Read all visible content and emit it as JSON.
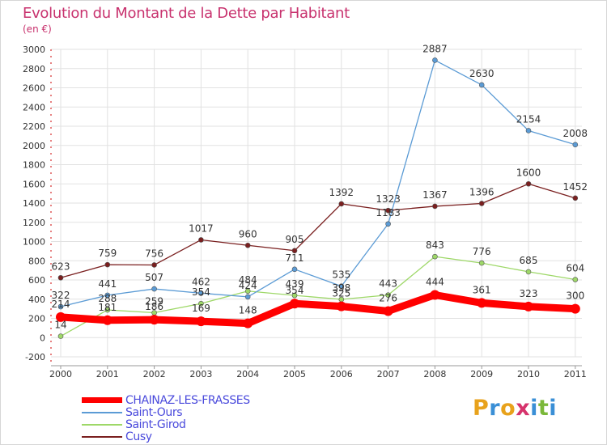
{
  "title": "Evolution du Montant de la Dette par Habitant",
  "unit": "(en €)",
  "logo": {
    "letters": [
      "P",
      "r",
      "o",
      "x",
      "i",
      "t",
      "i"
    ],
    "colors": [
      "#e8a21c",
      "#3a8fd6",
      "#e8a21c",
      "#d6336c",
      "#3a8fd6",
      "#7bb83a",
      "#3a8fd6"
    ]
  },
  "chart_data": {
    "type": "line",
    "title": "Evolution du Montant de la Dette par Habitant",
    "ylabel": "(en €)",
    "xlabel": "",
    "x": [
      "2000",
      "2001",
      "2002",
      "2003",
      "2004",
      "2005",
      "2006",
      "2007",
      "2008",
      "2009",
      "2010",
      "2011"
    ],
    "ylim": [
      -200,
      3000
    ],
    "yticks": [
      -200,
      0,
      200,
      400,
      600,
      800,
      1000,
      1200,
      1400,
      1600,
      1800,
      2000,
      2200,
      2400,
      2600,
      2800,
      3000
    ],
    "grid": true,
    "legend": "bottom-left",
    "series": [
      {
        "name": "Cusy",
        "color": "#7a1f1f",
        "values": [
          623,
          759,
          756,
          1017,
          960,
          905,
          1392,
          1323,
          1367,
          1396,
          1600,
          1452
        ]
      },
      {
        "name": "Saint-Girod",
        "color": "#9ed868",
        "values": [
          14,
          288,
          259,
          354,
          484,
          439,
          398,
          443,
          843,
          776,
          685,
          604
        ]
      },
      {
        "name": "Saint-Ours",
        "color": "#5b9bd5",
        "values": [
          322,
          441,
          507,
          462,
          424,
          711,
          535,
          1183,
          2887,
          2630,
          2154,
          2008
        ]
      },
      {
        "name": "CHAINAZ-LES-FRASSES",
        "color": "#ff0000",
        "values": [
          214,
          181,
          186,
          169,
          148,
          354,
          325,
          276,
          444,
          361,
          323,
          300
        ]
      }
    ]
  }
}
